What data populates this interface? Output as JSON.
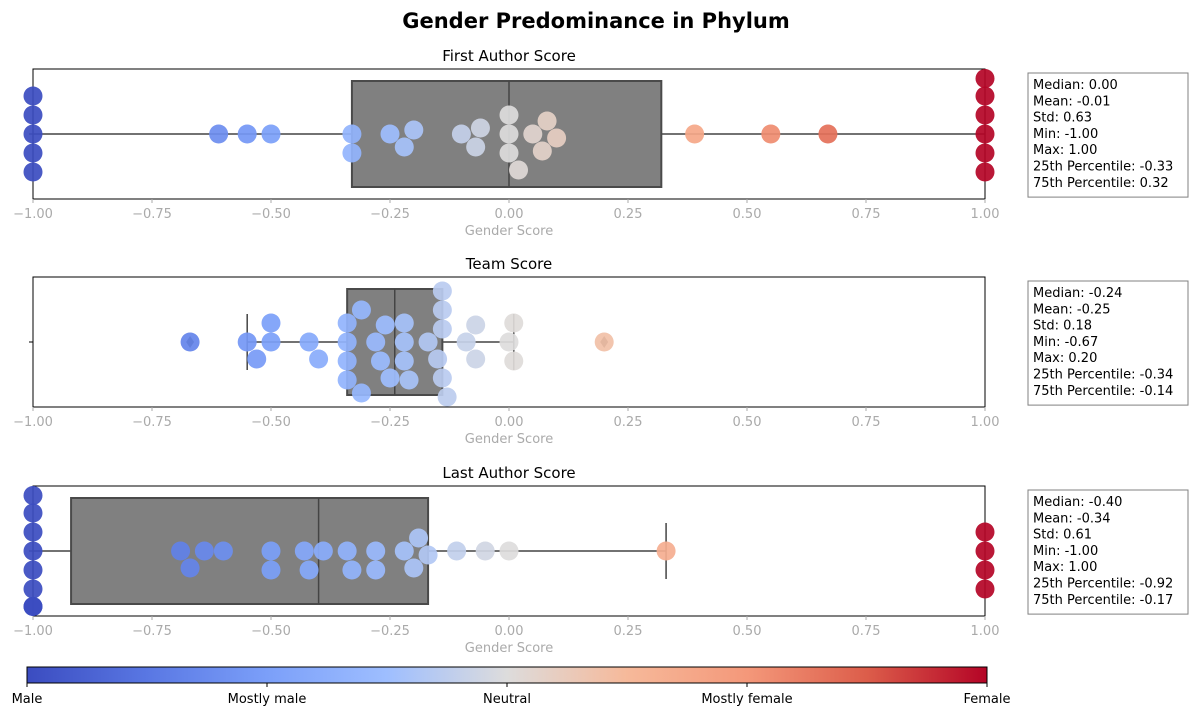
{
  "title": "Gender Predominance in Phylum",
  "colors": {
    "box": "#808080",
    "box_edge": "#4a4a4a",
    "whisker": "#444444"
  },
  "colorbar": {
    "labels": [
      "Male",
      "Mostly male",
      "Neutral",
      "Mostly female",
      "Female"
    ]
  },
  "chart_data": [
    {
      "type": "box+swarm",
      "title": "First Author Score",
      "xlabel": "Gender Score",
      "xlim": [
        -1.0,
        1.0
      ],
      "x_ticks": [
        "−1.00",
        "−0.75",
        "−0.50",
        "−0.25",
        "0.00",
        "0.25",
        "0.50",
        "0.75",
        "1.00"
      ],
      "box": {
        "q1": -0.33,
        "median": 0.0,
        "q3": 0.32,
        "whisker_low": -1.0,
        "whisker_high": 1.0
      },
      "outliers": [],
      "points": [
        -1.0,
        -1.0,
        -1.0,
        -1.0,
        -1.0,
        -0.61,
        -0.55,
        -0.5,
        -0.33,
        -0.33,
        -0.25,
        -0.2,
        -0.22,
        -0.1,
        -0.07,
        -0.06,
        0.0,
        0.0,
        0.0,
        0.02,
        0.05,
        0.07,
        0.08,
        0.1,
        0.39,
        0.55,
        0.67,
        1.0,
        1.0,
        1.0,
        1.0,
        1.0,
        1.0
      ],
      "stats": [
        "Median: 0.00",
        "Mean: -0.01",
        "Std: 0.63",
        "Min: -1.00",
        "Max: 1.00",
        "25th Percentile: -0.33",
        "75th Percentile: 0.32"
      ]
    },
    {
      "type": "box+swarm",
      "title": "Team Score",
      "xlabel": "Gender Score",
      "xlim": [
        -1.0,
        1.0
      ],
      "x_ticks": [
        "−1.00",
        "−0.75",
        "−0.50",
        "−0.25",
        "0.00",
        "0.25",
        "0.50",
        "0.75",
        "1.00"
      ],
      "box": {
        "q1": -0.34,
        "median": -0.24,
        "q3": -0.14,
        "whisker_low": -0.55,
        "whisker_high": 0.01
      },
      "outliers": [
        -0.67,
        0.2
      ],
      "points": [
        -0.67,
        -0.55,
        -0.53,
        -0.5,
        -0.5,
        -0.42,
        -0.4,
        -0.34,
        -0.34,
        -0.34,
        -0.34,
        -0.31,
        -0.31,
        -0.28,
        -0.27,
        -0.26,
        -0.25,
        -0.22,
        -0.22,
        -0.22,
        -0.21,
        -0.17,
        -0.15,
        -0.14,
        -0.14,
        -0.14,
        -0.14,
        -0.13,
        -0.09,
        -0.07,
        -0.07,
        0.0,
        0.01,
        0.01,
        0.2
      ],
      "stats": [
        "Median: -0.24",
        "Mean: -0.25",
        "Std: 0.18",
        "Min: -0.67",
        "Max: 0.20",
        "25th Percentile: -0.34",
        "75th Percentile: -0.14"
      ]
    },
    {
      "type": "box+swarm",
      "title": "Last Author Score",
      "xlabel": "Gender Score",
      "xlim": [
        -1.0,
        1.0
      ],
      "x_ticks": [
        "−1.00",
        "−0.75",
        "−0.50",
        "−0.25",
        "0.00",
        "0.25",
        "0.50",
        "0.75",
        "1.00"
      ],
      "box": {
        "q1": -0.92,
        "median": -0.4,
        "q3": -0.17,
        "whisker_low": -1.0,
        "whisker_high": 0.33
      },
      "outliers": [],
      "points": [
        -1.0,
        -1.0,
        -1.0,
        -1.0,
        -1.0,
        -1.0,
        -1.0,
        -1.0,
        -0.69,
        -0.67,
        -0.64,
        -0.6,
        -0.5,
        -0.5,
        -0.43,
        -0.42,
        -0.39,
        -0.34,
        -0.33,
        -0.28,
        -0.28,
        -0.22,
        -0.2,
        -0.19,
        -0.17,
        -0.11,
        -0.05,
        0.0,
        0.33,
        1.0,
        1.0,
        1.0,
        1.0
      ],
      "stats": [
        "Median: -0.40",
        "Mean: -0.34",
        "Std: 0.61",
        "Min: -1.00",
        "Max: 1.00",
        "25th Percentile: -0.92",
        "75th Percentile: -0.17"
      ]
    }
  ]
}
